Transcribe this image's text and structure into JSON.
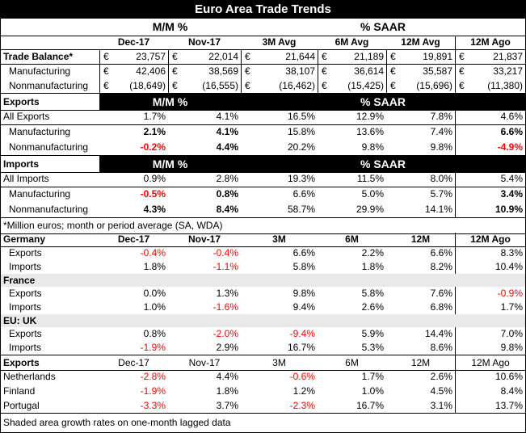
{
  "title": "Euro Area Trade Trends",
  "header": {
    "mm": "M/M %",
    "saar": "% SAAR",
    "cols": [
      "Dec-17",
      "Nov-17",
      "3M Avg",
      "6M Avg",
      "12M Avg",
      "12M Ago"
    ]
  },
  "currency_symbol": "€",
  "trade_balance": [
    {
      "label": "Trade Balance*",
      "values": [
        "23,757",
        "22,014",
        "21,644",
        "21,189",
        "19,891",
        "21,837"
      ]
    },
    {
      "label": "Manufacturing",
      "values": [
        "42,406",
        "38,569",
        "38,107",
        "36,614",
        "35,587",
        "33,217"
      ]
    },
    {
      "label": "Nonmanufacturing",
      "values": [
        "(18,649)",
        "(16,555)",
        "(16,462)",
        "(15,425)",
        "(15,696)",
        "(11,380)"
      ]
    }
  ],
  "exports": {
    "header": "Exports",
    "rows": [
      {
        "label": "All Exports",
        "values": [
          "1.7%",
          "4.1%",
          "16.5%",
          "12.9%",
          "7.8%",
          "4.6%"
        ]
      },
      {
        "label": "Manufacturing",
        "values": [
          "2.1%",
          "4.1%",
          "15.8%",
          "13.6%",
          "7.4%",
          "6.6%"
        ]
      },
      {
        "label": "Nonmanufacturing",
        "values": [
          "-0.2%",
          "4.4%",
          "20.2%",
          "9.8%",
          "9.8%",
          "-4.9%"
        ]
      }
    ]
  },
  "imports": {
    "header": "Imports",
    "rows": [
      {
        "label": "All Imports",
        "values": [
          "0.9%",
          "2.8%",
          "19.3%",
          "11.5%",
          "8.0%",
          "5.4%"
        ]
      },
      {
        "label": "Manufacturing",
        "values": [
          "-0.5%",
          "0.8%",
          "6.6%",
          "5.0%",
          "5.7%",
          "3.4%"
        ]
      },
      {
        "label": "Nonmanufacturing",
        "values": [
          "4.3%",
          "8.4%",
          "58.7%",
          "29.9%",
          "14.1%",
          "10.9%"
        ]
      }
    ]
  },
  "note": "*Million euros; month or period average (SA, WDA)",
  "countries_header": {
    "cols": [
      "Dec-17",
      "Nov-17",
      "3M",
      "6M",
      "12M",
      "12M Ago"
    ]
  },
  "countries": [
    {
      "name": "Germany",
      "rows": [
        {
          "label": "Exports",
          "values": [
            "-0.4%",
            "-0.4%",
            "6.6%",
            "2.2%",
            "6.6%",
            "8.3%"
          ]
        },
        {
          "label": "Imports",
          "values": [
            "1.8%",
            "-1.1%",
            "5.8%",
            "1.8%",
            "8.2%",
            "10.4%"
          ]
        }
      ]
    },
    {
      "name": "France",
      "rows": [
        {
          "label": "Exports",
          "values": [
            "0.0%",
            "1.3%",
            "9.8%",
            "5.8%",
            "7.6%",
            "-0.9%"
          ]
        },
        {
          "label": "Imports",
          "values": [
            "1.0%",
            "-1.6%",
            "9.4%",
            "2.6%",
            "6.8%",
            "1.7%"
          ]
        }
      ]
    },
    {
      "name": "EU: UK",
      "rows": [
        {
          "label": "Exports",
          "values": [
            "0.8%",
            "-2.0%",
            "-9.4%",
            "5.9%",
            "14.4%",
            "7.0%"
          ]
        },
        {
          "label": "Imports",
          "values": [
            "-1.9%",
            "2.9%",
            "16.7%",
            "5.3%",
            "8.6%",
            "9.8%"
          ]
        }
      ]
    }
  ],
  "exports2": {
    "header": "Exports",
    "cols": [
      "Dec-17",
      "Nov-17",
      "3M",
      "6M",
      "12M",
      "12M Ago"
    ],
    "rows": [
      {
        "label": "Netherlands",
        "values": [
          "-2.8%",
          "4.4%",
          "-0.6%",
          "1.7%",
          "2.6%",
          "10.6%"
        ]
      },
      {
        "label": "Finland",
        "values": [
          "-1.9%",
          "1.8%",
          "1.2%",
          "1.0%",
          "4.5%",
          "8.4%"
        ]
      },
      {
        "label": "Portugal",
        "values": [
          "-3.3%",
          "3.7%",
          "-2.3%",
          "16.7%",
          "3.1%",
          "13.7%"
        ]
      }
    ]
  },
  "footnote": "Shaded area growth rates on one-month lagged data"
}
